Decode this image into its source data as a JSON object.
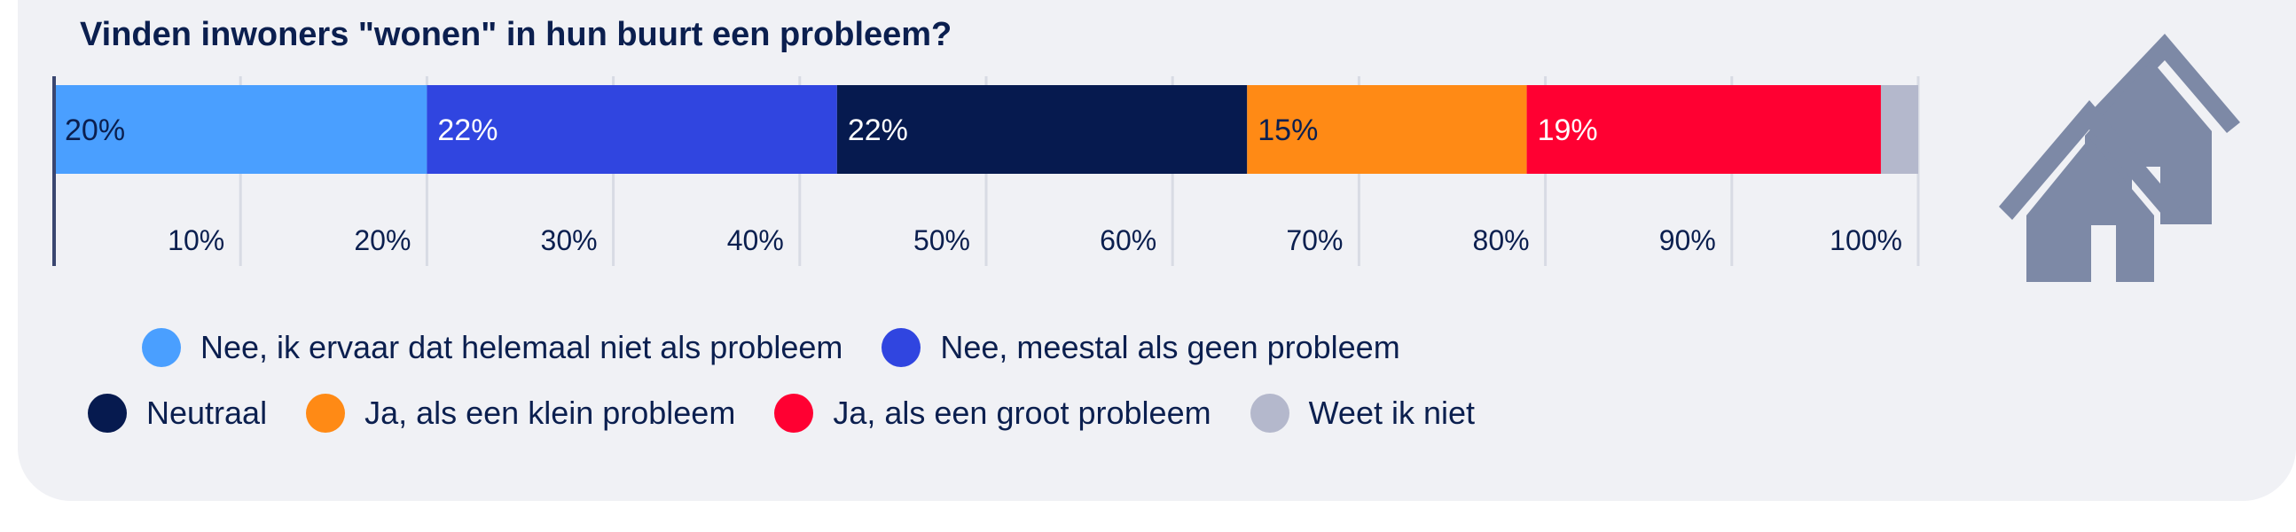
{
  "chart_data": {
    "type": "bar",
    "orientation": "horizontal-stacked",
    "title": "Vinden inwoners \"wonen\" in hun buurt een probleem?",
    "xlim": [
      0,
      100
    ],
    "ticks": [
      "10%",
      "20%",
      "30%",
      "40%",
      "50%",
      "60%",
      "70%",
      "80%",
      "90%",
      "100%"
    ],
    "grid": true,
    "legend_placement": "bottom",
    "series": [
      {
        "name": "Nee, ik ervaar dat helemaal niet als probleem",
        "value": 20,
        "label": "20%",
        "color": "#4a9fff",
        "label_color": "#0b1f4f"
      },
      {
        "name": "Nee, meestal als geen probleem",
        "value": 22,
        "label": "22%",
        "color": "#3045e0",
        "label_color": "#ffffff"
      },
      {
        "name": "Neutraal",
        "value": 22,
        "label": "22%",
        "color": "#061a4f",
        "label_color": "#ffffff"
      },
      {
        "name": "Ja, als een klein probleem",
        "value": 15,
        "label": "15%",
        "color": "#ff8a15",
        "label_color": "#0b1f4f"
      },
      {
        "name": "Ja, als een groot probleem",
        "value": 19,
        "label": "19%",
        "color": "#ff0032",
        "label_color": "#ffffff"
      },
      {
        "name": "Weet ik niet",
        "value": 2,
        "label": "",
        "color": "#b4b8cc",
        "label_color": "#0b1f4f"
      }
    ]
  },
  "icon": "houses-icon"
}
